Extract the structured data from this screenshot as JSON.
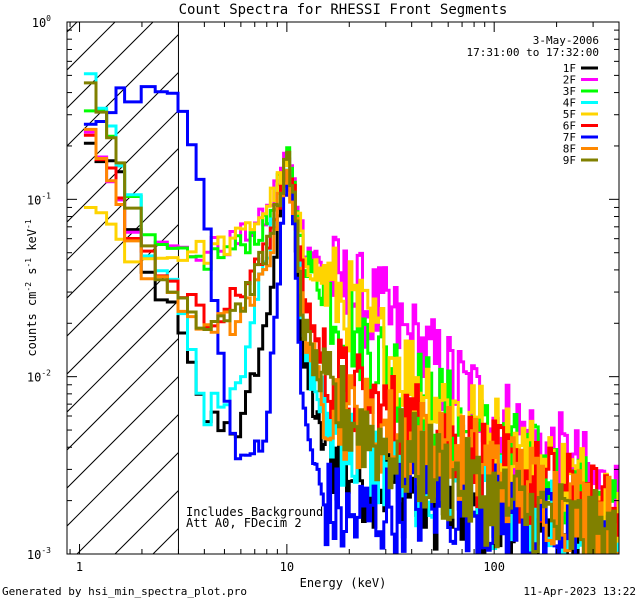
{
  "chart_data": {
    "type": "line",
    "title": "Count Spectra for RHESSI Front Segments",
    "xlabel": "Energy (keV)",
    "ylabel_base": "counts cm",
    "ylabel_sup1": "-2",
    "ylabel_mid1": " s",
    "ylabel_sup2": "-1",
    "ylabel_mid2": " keV",
    "ylabel_sup3": "-1",
    "xscale": "log",
    "yscale": "log",
    "xlim": [
      0.87,
      400
    ],
    "ylim": [
      0.001,
      1.0
    ],
    "x_ticks": [
      {
        "v": 1,
        "label": "1"
      },
      {
        "v": 10,
        "label": "10"
      },
      {
        "v": 100,
        "label": "100"
      }
    ],
    "y_ticks": [
      {
        "v": 1,
        "base": "10",
        "exp": "0"
      },
      {
        "v": 0.1,
        "base": "10",
        "exp": "-1"
      },
      {
        "v": 0.01,
        "base": "10",
        "exp": "-2"
      },
      {
        "v": 0.001,
        "base": "10",
        "exp": "-3"
      }
    ],
    "date": "3-May-2006",
    "time_range": "17:31:00 to 17:32:00",
    "shaded_region_max_kev": 3.0,
    "annotations": [
      "Includes Background",
      "Att A0, FDecim 2"
    ],
    "series": [
      {
        "name": "1F",
        "color": "#000000",
        "points": [
          [
            1.1,
            0.2
          ],
          [
            1.5,
            0.15
          ],
          [
            2,
            0.04
          ],
          [
            2.5,
            0.03
          ],
          [
            3,
            0.02
          ],
          [
            4,
            0.006
          ],
          [
            6,
            0.005
          ],
          [
            8,
            0.02
          ],
          [
            10,
            0.16
          ],
          [
            11,
            0.08
          ],
          [
            12,
            0.012
          ],
          [
            15,
            0.004
          ],
          [
            20,
            0.003
          ],
          [
            30,
            0.0025
          ],
          [
            50,
            0.002
          ],
          [
            100,
            0.0016
          ],
          [
            200,
            0.0012
          ],
          [
            380,
            0.001
          ]
        ]
      },
      {
        "name": "2F",
        "color": "#ff00ff",
        "points": [
          [
            1.1,
            0.24
          ],
          [
            1.5,
            0.13
          ],
          [
            2,
            0.055
          ],
          [
            3,
            0.05
          ],
          [
            4,
            0.05
          ],
          [
            6,
            0.06
          ],
          [
            8,
            0.08
          ],
          [
            10,
            0.18
          ],
          [
            11,
            0.11
          ],
          [
            12,
            0.06
          ],
          [
            15,
            0.04
          ],
          [
            20,
            0.03
          ],
          [
            30,
            0.022
          ],
          [
            50,
            0.012
          ],
          [
            100,
            0.006
          ],
          [
            200,
            0.0035
          ],
          [
            380,
            0.002
          ]
        ]
      },
      {
        "name": "3F",
        "color": "#00ff00",
        "points": [
          [
            1.1,
            0.38
          ],
          [
            1.5,
            0.18
          ],
          [
            2,
            0.06
          ],
          [
            3,
            0.045
          ],
          [
            4,
            0.045
          ],
          [
            6,
            0.055
          ],
          [
            8,
            0.07
          ],
          [
            10,
            0.17
          ],
          [
            11,
            0.1
          ],
          [
            12,
            0.05
          ],
          [
            15,
            0.03
          ],
          [
            20,
            0.02
          ],
          [
            30,
            0.012
          ],
          [
            50,
            0.007
          ],
          [
            100,
            0.004
          ],
          [
            200,
            0.0025
          ],
          [
            380,
            0.0015
          ]
        ]
      },
      {
        "name": "4F",
        "color": "#00ffff",
        "points": [
          [
            1.1,
            0.52
          ],
          [
            1.5,
            0.23
          ],
          [
            2,
            0.055
          ],
          [
            2.5,
            0.035
          ],
          [
            3,
            0.03
          ],
          [
            4,
            0.006
          ],
          [
            6,
            0.01
          ],
          [
            8,
            0.05
          ],
          [
            10,
            0.17
          ],
          [
            11,
            0.09
          ],
          [
            12,
            0.015
          ],
          [
            15,
            0.006
          ],
          [
            20,
            0.004
          ],
          [
            30,
            0.003
          ],
          [
            50,
            0.0025
          ],
          [
            100,
            0.002
          ],
          [
            200,
            0.0014
          ],
          [
            380,
            0.001
          ]
        ]
      },
      {
        "name": "5F",
        "color": "#ffd400",
        "points": [
          [
            1.1,
            0.1
          ],
          [
            1.5,
            0.065
          ],
          [
            2,
            0.045
          ],
          [
            3,
            0.05
          ],
          [
            4,
            0.05
          ],
          [
            6,
            0.06
          ],
          [
            8,
            0.09
          ],
          [
            10,
            0.15
          ],
          [
            11,
            0.09
          ],
          [
            12,
            0.05
          ],
          [
            15,
            0.035
          ],
          [
            20,
            0.025
          ],
          [
            30,
            0.014
          ],
          [
            50,
            0.008
          ],
          [
            100,
            0.0045
          ],
          [
            200,
            0.0028
          ],
          [
            380,
            0.002
          ]
        ]
      },
      {
        "name": "6F",
        "color": "#ff0000",
        "points": [
          [
            1.1,
            0.21
          ],
          [
            1.5,
            0.13
          ],
          [
            2,
            0.05
          ],
          [
            3,
            0.035
          ],
          [
            4,
            0.02
          ],
          [
            6,
            0.03
          ],
          [
            8,
            0.05
          ],
          [
            10,
            0.16
          ],
          [
            11,
            0.09
          ],
          [
            12,
            0.03
          ],
          [
            15,
            0.012
          ],
          [
            20,
            0.008
          ],
          [
            30,
            0.006
          ],
          [
            50,
            0.005
          ],
          [
            100,
            0.003
          ],
          [
            200,
            0.0022
          ],
          [
            380,
            0.0015
          ]
        ]
      },
      {
        "name": "7F",
        "color": "#0000ff",
        "points": [
          [
            1.1,
            0.3
          ],
          [
            1.5,
            0.35
          ],
          [
            2,
            0.42
          ],
          [
            2.5,
            0.4
          ],
          [
            3,
            0.36
          ],
          [
            3.5,
            0.2
          ],
          [
            4,
            0.09
          ],
          [
            4.5,
            0.03
          ],
          [
            5,
            0.008
          ],
          [
            6,
            0.003
          ],
          [
            8,
            0.005
          ],
          [
            9,
            0.03
          ],
          [
            10,
            0.17
          ],
          [
            11,
            0.05
          ],
          [
            12,
            0.006
          ],
          [
            15,
            0.002
          ],
          [
            20,
            0.0015
          ],
          [
            30,
            0.0018
          ],
          [
            50,
            0.002
          ],
          [
            100,
            0.0018
          ],
          [
            200,
            0.0012
          ],
          [
            380,
            0.001
          ]
        ]
      },
      {
        "name": "8F",
        "color": "#ff8800",
        "points": [
          [
            1.1,
            0.22
          ],
          [
            1.5,
            0.12
          ],
          [
            2,
            0.04
          ],
          [
            3,
            0.025
          ],
          [
            4,
            0.02
          ],
          [
            6,
            0.02
          ],
          [
            8,
            0.04
          ],
          [
            10,
            0.16
          ],
          [
            11,
            0.08
          ],
          [
            12,
            0.02
          ],
          [
            15,
            0.008
          ],
          [
            20,
            0.006
          ],
          [
            30,
            0.005
          ],
          [
            50,
            0.004
          ],
          [
            100,
            0.003
          ],
          [
            200,
            0.002
          ],
          [
            380,
            0.0015
          ]
        ]
      },
      {
        "name": "9F",
        "color": "#808000",
        "points": [
          [
            1.1,
            0.45
          ],
          [
            1.5,
            0.2
          ],
          [
            2,
            0.06
          ],
          [
            3,
            0.03
          ],
          [
            4,
            0.02
          ],
          [
            6,
            0.025
          ],
          [
            8,
            0.05
          ],
          [
            10,
            0.17
          ],
          [
            11,
            0.08
          ],
          [
            12,
            0.02
          ],
          [
            15,
            0.008
          ],
          [
            20,
            0.006
          ],
          [
            30,
            0.004
          ],
          [
            50,
            0.003
          ],
          [
            100,
            0.002
          ],
          [
            200,
            0.0015
          ],
          [
            380,
            0.0011
          ]
        ]
      }
    ]
  },
  "footer": {
    "generated_by": "Generated by hsi_min_spectra_plot.pro",
    "timestamp": "11-Apr-2023 13:22"
  }
}
